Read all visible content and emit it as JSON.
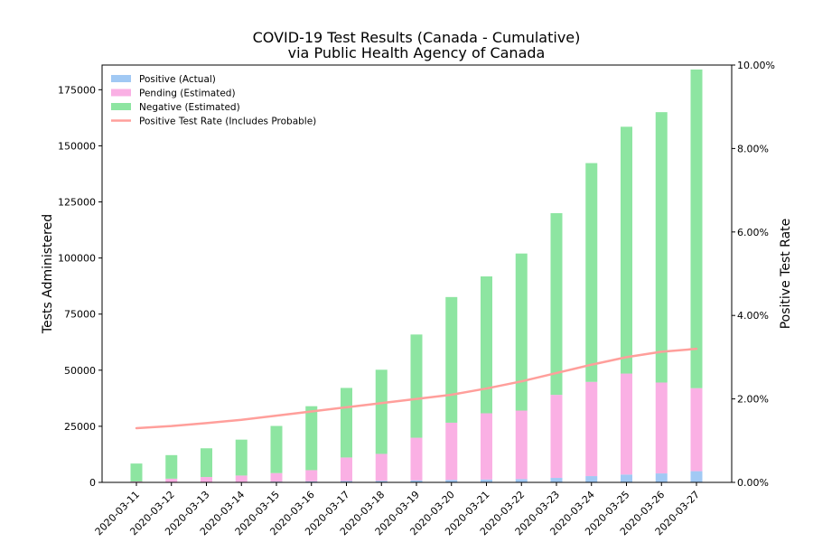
{
  "chart_data": {
    "type": "bar",
    "title": "COVID-19 Test Results (Canada - Cumulative)",
    "subtitle": "via Public Health Agency of Canada",
    "ylabel": "Tests Administered",
    "y2label": "Positive Test Rate",
    "ylim": [
      0,
      186000
    ],
    "y2lim": [
      0,
      10
    ],
    "yticks": [
      0,
      25000,
      50000,
      75000,
      100000,
      125000,
      150000,
      175000
    ],
    "y2ticks": [
      "0.00%",
      "2.00%",
      "4.00%",
      "6.00%",
      "8.00%",
      "10.00%"
    ],
    "y2tickvalues": [
      0,
      2,
      4,
      6,
      8,
      10
    ],
    "categories": [
      "2020-03-11",
      "2020-03-12",
      "2020-03-13",
      "2020-03-14",
      "2020-03-15",
      "2020-03-16",
      "2020-03-17",
      "2020-03-18",
      "2020-03-19",
      "2020-03-20",
      "2020-03-21",
      "2020-03-22",
      "2020-03-23",
      "2020-03-24",
      "2020-03-25",
      "2020-03-26",
      "2020-03-27"
    ],
    "stacked": true,
    "legend_position": "top-left",
    "series": [
      {
        "name": "Positive (Actual)",
        "kind": "bar",
        "color": "#a1c9f4",
        "values": [
          100,
          150,
          200,
          250,
          350,
          450,
          600,
          700,
          900,
          1100,
          1300,
          1500,
          2000,
          2800,
          3500,
          4000,
          5000
        ]
      },
      {
        "name": "Pending (Estimated)",
        "kind": "bar",
        "color": "#fab0e4",
        "values": [
          300,
          1500,
          2200,
          2800,
          3800,
          5000,
          10500,
          12000,
          19000,
          25500,
          29500,
          30500,
          37000,
          42000,
          45000,
          40500,
          37000
        ]
      },
      {
        "name": "Negative (Estimated)",
        "kind": "bar",
        "color": "#8de5a1",
        "values": [
          8000,
          10500,
          12800,
          16000,
          21000,
          28500,
          31000,
          37500,
          46000,
          56000,
          61000,
          70000,
          81000,
          97500,
          110000,
          120500,
          142000
        ]
      },
      {
        "name": "Positive Test Rate (Includes Probable)",
        "kind": "line",
        "axis": "right",
        "color": "#ff9f9b",
        "values": [
          1.3,
          1.35,
          1.42,
          1.5,
          1.6,
          1.7,
          1.8,
          1.9,
          2.0,
          2.1,
          2.25,
          2.42,
          2.62,
          2.82,
          3.0,
          3.13,
          3.2
        ]
      }
    ]
  }
}
